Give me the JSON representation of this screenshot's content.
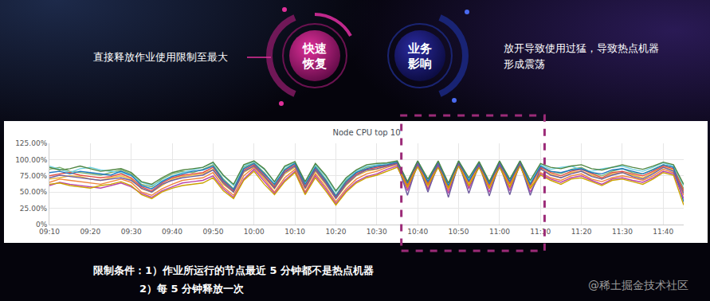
{
  "chart_data": {
    "type": "line",
    "title": "Node CPU top 10",
    "categories": [
      "09:10",
      null,
      null,
      null,
      "09:20",
      null,
      null,
      null,
      "09:30",
      null,
      null,
      null,
      "09:40",
      null,
      null,
      null,
      "09:50",
      null,
      null,
      null,
      "10:00",
      null,
      null,
      null,
      "10:10",
      null,
      null,
      null,
      "10:20",
      null,
      null,
      null,
      "10:30",
      null,
      null,
      null,
      "10:40",
      null,
      null,
      null,
      "10:50",
      null,
      null,
      null,
      "11:00",
      null,
      null,
      null,
      "11:10",
      null,
      null,
      null,
      "11:20",
      null,
      null,
      null,
      "11:30",
      null,
      null,
      null,
      "11:40",
      null,
      null
    ],
    "series": [
      {
        "color": "#7eb26d",
        "values": [
          85,
          88,
          82,
          80,
          78,
          76,
          80,
          84,
          78,
          62,
          58,
          70,
          78,
          82,
          80,
          85,
          92,
          70,
          55,
          88,
          95,
          80,
          60,
          85,
          95,
          60,
          90,
          70,
          45,
          68,
          80,
          88,
          90,
          92,
          96,
          62,
          97,
          65,
          96,
          60,
          97,
          68,
          95,
          62,
          96,
          66,
          97,
          63,
          90,
          82,
          78,
          85,
          88,
          80,
          75,
          82,
          86,
          80,
          78,
          85,
          92,
          88,
          55
        ]
      },
      {
        "color": "#eab839",
        "values": [
          70,
          72,
          75,
          74,
          70,
          68,
          72,
          75,
          70,
          55,
          50,
          60,
          70,
          74,
          76,
          78,
          85,
          62,
          50,
          80,
          90,
          72,
          55,
          78,
          88,
          55,
          82,
          62,
          40,
          60,
          75,
          82,
          85,
          90,
          94,
          58,
          95,
          60,
          94,
          55,
          95,
          62,
          93,
          58,
          94,
          60,
          95,
          58,
          85,
          78,
          72,
          80,
          82,
          76,
          70,
          78,
          80,
          76,
          72,
          80,
          88,
          84,
          50
        ]
      },
      {
        "color": "#6ed0e0",
        "values": [
          90,
          85,
          80,
          86,
          88,
          84,
          82,
          80,
          75,
          65,
          60,
          68,
          75,
          80,
          84,
          88,
          95,
          75,
          60,
          90,
          97,
          85,
          65,
          88,
          96,
          65,
          92,
          74,
          50,
          70,
          82,
          90,
          92,
          94,
          97,
          65,
          98,
          68,
          97,
          62,
          98,
          70,
          96,
          65,
          97,
          68,
          98,
          66,
          92,
          85,
          88,
          90,
          84,
          82,
          86,
          88,
          90,
          85,
          82,
          88,
          95,
          90,
          60
        ]
      },
      {
        "color": "#ef843c",
        "values": [
          65,
          70,
          68,
          66,
          64,
          62,
          66,
          70,
          65,
          50,
          45,
          55,
          62,
          68,
          70,
          72,
          80,
          58,
          45,
          75,
          88,
          70,
          50,
          72,
          85,
          50,
          78,
          58,
          35,
          55,
          70,
          78,
          82,
          88,
          92,
          55,
          93,
          56,
          92,
          52,
          93,
          58,
          91,
          55,
          92,
          56,
          93,
          55,
          80,
          72,
          68,
          75,
          78,
          70,
          66,
          72,
          75,
          72,
          68,
          75,
          85,
          80,
          45
        ]
      },
      {
        "color": "#e24d42",
        "values": [
          75,
          78,
          80,
          76,
          74,
          72,
          74,
          78,
          72,
          58,
          52,
          64,
          72,
          76,
          78,
          80,
          88,
          66,
          52,
          84,
          92,
          76,
          58,
          82,
          92,
          58,
          86,
          66,
          42,
          64,
          78,
          85,
          88,
          91,
          95,
          60,
          96,
          63,
          95,
          58,
          96,
          65,
          94,
          60,
          95,
          63,
          96,
          60,
          88,
          80,
          75,
          82,
          85,
          78,
          72,
          80,
          82,
          78,
          75,
          82,
          90,
          86,
          52
        ]
      },
      {
        "color": "#1f78c1",
        "values": [
          80,
          82,
          78,
          82,
          80,
          78,
          76,
          82,
          76,
          60,
          55,
          66,
          74,
          78,
          82,
          84,
          90,
          68,
          54,
          86,
          94,
          78,
          62,
          84,
          94,
          62,
          88,
          68,
          44,
          66,
          80,
          86,
          90,
          92,
          96,
          64,
          97,
          66,
          96,
          60,
          97,
          67,
          95,
          63,
          96,
          66,
          97,
          62,
          90,
          82,
          80,
          84,
          86,
          80,
          78,
          84,
          86,
          82,
          78,
          84,
          92,
          88,
          35
        ]
      },
      {
        "color": "#ba43a9",
        "values": [
          60,
          65,
          62,
          60,
          58,
          56,
          60,
          64,
          58,
          48,
          42,
          52,
          58,
          64,
          66,
          68,
          75,
          55,
          42,
          70,
          85,
          66,
          48,
          68,
          82,
          48,
          75,
          55,
          32,
          52,
          66,
          74,
          78,
          85,
          90,
          52,
          91,
          54,
          90,
          48,
          92,
          55,
          90,
          50,
          90,
          52,
          92,
          50,
          78,
          70,
          65,
          72,
          75,
          68,
          62,
          70,
          72,
          68,
          65,
          72,
          82,
          78,
          40
        ]
      },
      {
        "color": "#705da0",
        "values": [
          72,
          76,
          74,
          72,
          70,
          68,
          70,
          72,
          68,
          56,
          50,
          62,
          68,
          72,
          74,
          76,
          84,
          64,
          50,
          82,
          90,
          74,
          56,
          80,
          90,
          56,
          84,
          64,
          40,
          62,
          76,
          84,
          86,
          90,
          94,
          45,
          95,
          50,
          94,
          42,
          95,
          48,
          93,
          44,
          94,
          46,
          95,
          45,
          86,
          76,
          72,
          78,
          82,
          74,
          70,
          76,
          80,
          74,
          70,
          78,
          88,
          82,
          48
        ]
      },
      {
        "color": "#508642",
        "values": [
          88,
          84,
          86,
          90,
          86,
          82,
          84,
          86,
          80,
          66,
          62,
          72,
          80,
          84,
          86,
          88,
          96,
          76,
          62,
          92,
          98,
          86,
          66,
          90,
          97,
          66,
          94,
          76,
          52,
          72,
          84,
          92,
          94,
          95,
          98,
          66,
          98,
          70,
          98,
          64,
          98,
          72,
          97,
          66,
          98,
          70,
          98,
          68,
          94,
          88,
          86,
          90,
          92,
          86,
          84,
          88,
          92,
          88,
          85,
          90,
          96,
          92,
          62
        ]
      },
      {
        "color": "#cca300",
        "values": [
          62,
          64,
          60,
          58,
          56,
          60,
          62,
          66,
          60,
          46,
          40,
          50,
          56,
          60,
          62,
          64,
          72,
          52,
          40,
          68,
          82,
          62,
          46,
          66,
          80,
          46,
          72,
          52,
          30,
          50,
          64,
          72,
          76,
          82,
          88,
          58,
          89,
          60,
          88,
          56,
          90,
          60,
          88,
          56,
          88,
          58,
          90,
          56,
          76,
          68,
          62,
          70,
          72,
          66,
          60,
          68,
          70,
          66,
          62,
          70,
          80,
          76,
          30
        ]
      }
    ],
    "ylim": [
      0,
      125
    ],
    "yticks": [
      {
        "value": 0,
        "label": "0%"
      },
      {
        "value": 25,
        "label": "25.00%"
      },
      {
        "value": 50,
        "label": "50.00%"
      },
      {
        "value": 75,
        "label": "75.00%"
      },
      {
        "value": 100,
        "label": "100.00%"
      },
      {
        "value": 125,
        "label": "125.00%"
      }
    ],
    "grid": true,
    "highlight": {
      "x0": 34.4,
      "x1": 48.4
    }
  },
  "slide": {
    "left_text": "直接释放作业使用限制至最大",
    "circles": [
      [
        "快速",
        "恢复"
      ],
      [
        "业务",
        "影响"
      ]
    ],
    "right_text": [
      "放开导致使用过猛，导致热点机器",
      "形成震荡"
    ],
    "conditions": [
      "限制条件：1）作业所运行的节点最近 5 分钟都不是热点机器",
      "2）每 5 分钟释放一次"
    ],
    "watermark": "@稀土掘金技术社区"
  }
}
